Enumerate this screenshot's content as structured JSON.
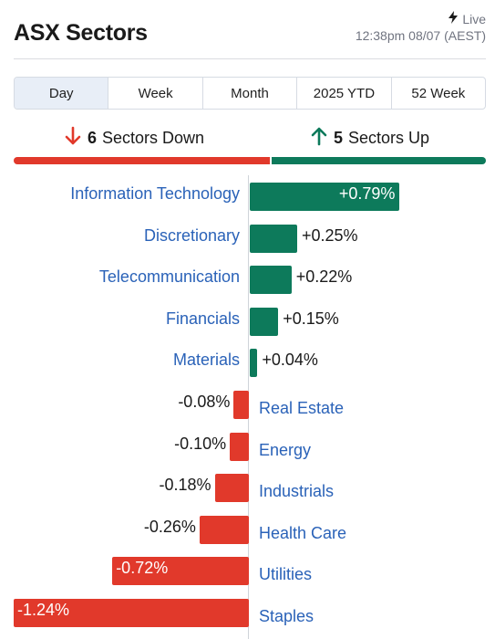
{
  "header": {
    "title": "ASX Sectors",
    "live_label": "Live",
    "timestamp": "12:38pm 08/07 (AEST)"
  },
  "tabs": [
    {
      "label": "Day",
      "active": true
    },
    {
      "label": "Week",
      "active": false
    },
    {
      "label": "Month",
      "active": false
    },
    {
      "label": "2025 YTD",
      "active": false
    },
    {
      "label": "52 Week",
      "active": false
    }
  ],
  "summary": {
    "down_count": "6",
    "down_text": "Sectors Down",
    "up_count": "5",
    "up_text": "Sectors Up"
  },
  "colors": {
    "up": "#0d7a5b",
    "down": "#e1392b",
    "link": "#2a62b8"
  },
  "icons": {
    "live": "lightning-bolt-icon",
    "down": "arrow-down-icon",
    "up": "arrow-up-icon"
  },
  "chart_data": {
    "type": "bar",
    "orientation": "horizontal",
    "title": "",
    "xlabel": "",
    "ylabel": "",
    "categories": [
      "Information Technology",
      "Discretionary",
      "Telecommunication",
      "Financials",
      "Materials",
      "Real Estate",
      "Energy",
      "Industrials",
      "Health Care",
      "Utilities",
      "Staples"
    ],
    "values": [
      0.79,
      0.25,
      0.22,
      0.15,
      0.04,
      -0.08,
      -0.1,
      -0.18,
      -0.26,
      -0.72,
      -1.24
    ],
    "labels": [
      "+0.79%",
      "+0.25%",
      "+0.22%",
      "+0.15%",
      "+0.04%",
      "-0.08%",
      "-0.10%",
      "-0.18%",
      "-0.26%",
      "-0.72%",
      "-1.24%"
    ]
  }
}
